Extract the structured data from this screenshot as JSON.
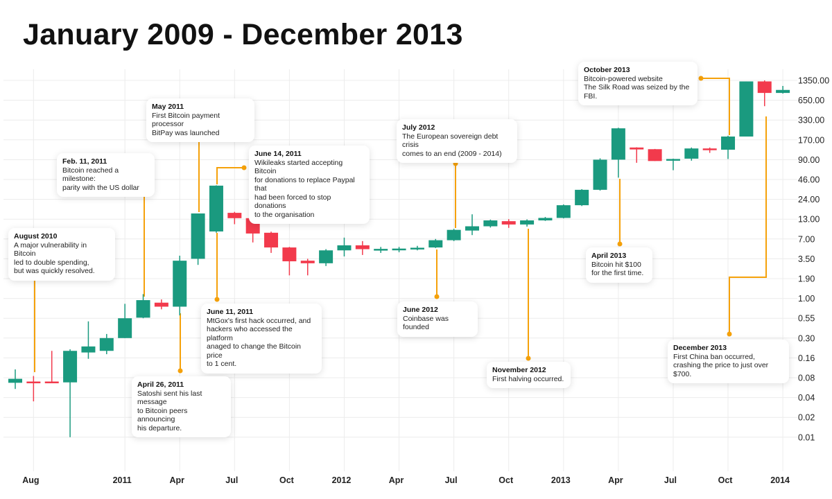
{
  "title": "January 2009 - December 2013",
  "colors": {
    "up": "#1a9a7f",
    "down": "#f23a4c",
    "annotation": "#f5a10a",
    "grid": "#ececec"
  },
  "chart_data": {
    "type": "candlestick",
    "title": "January 2009 - December 2013",
    "y_scale": "log",
    "y_ticks": [
      "1350.00",
      "650.00",
      "330.00",
      "170.00",
      "90.00",
      "46.00",
      "24.00",
      "13.00",
      "7.00",
      "3.50",
      "1.90",
      "1.00",
      "0.55",
      "0.30",
      "0.16",
      "0.08",
      "0.04",
      "0.02",
      "0.01"
    ],
    "x_ticks": [
      {
        "label": "Aug",
        "month": "2010-08"
      },
      {
        "label": "2011",
        "month": "2011-01"
      },
      {
        "label": "Apr",
        "month": "2011-04"
      },
      {
        "label": "Jul",
        "month": "2011-07"
      },
      {
        "label": "Oct",
        "month": "2011-10"
      },
      {
        "label": "2012",
        "month": "2012-01"
      },
      {
        "label": "Apr",
        "month": "2012-04"
      },
      {
        "label": "Jul",
        "month": "2012-07"
      },
      {
        "label": "Oct",
        "month": "2012-10"
      },
      {
        "label": "2013",
        "month": "2013-01"
      },
      {
        "label": "Apr",
        "month": "2013-04"
      },
      {
        "label": "Jul",
        "month": "2013-07"
      },
      {
        "label": "Oct",
        "month": "2013-10"
      },
      {
        "label": "2014",
        "month": "2014-01"
      }
    ],
    "grid": true,
    "candles": [
      {
        "month": "2010-07",
        "o": 0.067,
        "h": 0.107,
        "l": 0.054,
        "c": 0.077
      },
      {
        "month": "2010-08",
        "o": 0.07,
        "h": 0.085,
        "l": 0.035,
        "c": 0.068
      },
      {
        "month": "2010-09",
        "o": 0.07,
        "h": 0.2,
        "l": 0.066,
        "c": 0.068
      },
      {
        "month": "2010-10",
        "o": 0.068,
        "h": 0.21,
        "l": 0.01,
        "c": 0.2
      },
      {
        "month": "2010-11",
        "o": 0.19,
        "h": 0.5,
        "l": 0.155,
        "c": 0.23
      },
      {
        "month": "2010-12",
        "o": 0.2,
        "h": 0.34,
        "l": 0.18,
        "c": 0.3
      },
      {
        "month": "2011-01",
        "o": 0.3,
        "h": 0.85,
        "l": 0.3,
        "c": 0.55
      },
      {
        "month": "2011-02",
        "o": 0.56,
        "h": 1.15,
        "l": 0.55,
        "c": 0.95
      },
      {
        "month": "2011-03",
        "o": 0.88,
        "h": 0.97,
        "l": 0.72,
        "c": 0.78
      },
      {
        "month": "2011-04",
        "o": 0.78,
        "h": 3.9,
        "l": 0.6,
        "c": 3.3
      },
      {
        "month": "2011-05",
        "o": 3.5,
        "h": 15.5,
        "l": 2.9,
        "c": 15.5
      },
      {
        "month": "2011-06",
        "o": 8.85,
        "h": 38,
        "l": 8.5,
        "c": 37.6
      },
      {
        "month": "2011-07",
        "o": 15.8,
        "h": 16.3,
        "l": 11.1,
        "c": 13.4
      },
      {
        "month": "2011-08",
        "o": 13.4,
        "h": 13.5,
        "l": 6.2,
        "c": 8.3
      },
      {
        "month": "2011-09",
        "o": 8.5,
        "h": 8.8,
        "l": 4.3,
        "c": 5.2
      },
      {
        "month": "2011-10",
        "o": 5.2,
        "h": 5.3,
        "l": 2.1,
        "c": 3.24
      },
      {
        "month": "2011-11",
        "o": 3.3,
        "h": 3.5,
        "l": 2.1,
        "c": 3.05
      },
      {
        "month": "2011-12",
        "o": 3.05,
        "h": 4.9,
        "l": 2.8,
        "c": 4.7
      },
      {
        "month": "2012-01",
        "o": 4.7,
        "h": 7.3,
        "l": 3.8,
        "c": 5.6
      },
      {
        "month": "2012-02",
        "o": 5.6,
        "h": 6.5,
        "l": 4.0,
        "c": 4.9
      },
      {
        "month": "2012-03",
        "o": 4.9,
        "h": 5.3,
        "l": 4.3,
        "c": 4.95
      },
      {
        "month": "2012-04",
        "o": 4.95,
        "h": 5.3,
        "l": 4.4,
        "c": 5.0
      },
      {
        "month": "2012-05",
        "o": 4.9,
        "h": 5.5,
        "l": 4.7,
        "c": 5.15
      },
      {
        "month": "2012-06",
        "o": 5.2,
        "h": 7.0,
        "l": 5.1,
        "c": 6.7
      },
      {
        "month": "2012-07",
        "o": 6.7,
        "h": 9.6,
        "l": 6.5,
        "c": 9.3
      },
      {
        "month": "2012-08",
        "o": 9.1,
        "h": 15.1,
        "l": 7.9,
        "c": 10.4
      },
      {
        "month": "2012-09",
        "o": 10.4,
        "h": 12.8,
        "l": 10.0,
        "c": 12.5
      },
      {
        "month": "2012-10",
        "o": 12.2,
        "h": 13.0,
        "l": 9.9,
        "c": 11.0
      },
      {
        "month": "2012-11",
        "o": 11.0,
        "h": 12.9,
        "l": 10.3,
        "c": 12.5
      },
      {
        "month": "2012-12",
        "o": 12.5,
        "h": 13.9,
        "l": 12.3,
        "c": 13.5
      },
      {
        "month": "2013-01",
        "o": 13.5,
        "h": 20.5,
        "l": 13.3,
        "c": 20
      },
      {
        "month": "2013-02",
        "o": 20,
        "h": 33.5,
        "l": 19.5,
        "c": 32.8
      },
      {
        "month": "2013-03",
        "o": 32.8,
        "h": 94,
        "l": 32,
        "c": 90
      },
      {
        "month": "2013-04",
        "o": 90,
        "h": 255,
        "l": 49,
        "c": 250
      },
      {
        "month": "2013-05",
        "o": 133,
        "h": 134,
        "l": 81,
        "c": 125
      },
      {
        "month": "2013-06",
        "o": 126,
        "h": 127,
        "l": 86,
        "c": 86
      },
      {
        "month": "2013-07",
        "o": 87,
        "h": 93,
        "l": 63,
        "c": 92
      },
      {
        "month": "2013-08",
        "o": 93,
        "h": 133,
        "l": 87,
        "c": 129
      },
      {
        "month": "2013-09",
        "o": 129,
        "h": 133,
        "l": 112,
        "c": 124
      },
      {
        "month": "2013-10",
        "o": 124,
        "h": 195,
        "l": 92,
        "c": 190
      },
      {
        "month": "2013-11",
        "o": 190,
        "h": 1300,
        "l": 190,
        "c": 1300
      },
      {
        "month": "2013-12",
        "o": 1300,
        "h": 1350,
        "l": 530,
        "c": 850
      },
      {
        "month": "2014-01",
        "o": 850,
        "h": 1100,
        "l": 830,
        "c": 950
      }
    ],
    "annotations": [
      {
        "date": "August 2010",
        "text": "A major vulnerability in Bitcoin\nled to double spending,\nbut was quickly resolved."
      },
      {
        "date": "Feb. 11, 2011",
        "text": "Bitcoin reached a milestone:\nparity with the US dollar"
      },
      {
        "date": "May 2011",
        "text": "First Bitcoin payment processor\nBitPay was launched"
      },
      {
        "date": "June 14, 2011",
        "text": "Wikileaks started accepting Bitcoin\nfor donations to replace Paypal that\nhad been forced to stop donations\nto the organisation"
      },
      {
        "date": "June 11, 2011",
        "text": "MtGox's first hack occurred, and\nhackers who accessed the platform\nanaged to change the Bitcoin price\nto 1 cent."
      },
      {
        "date": "April 26, 2011",
        "text": "Satoshi sent his last message\nto Bitcoin peers announcing\nhis departure."
      },
      {
        "date": "July 2012",
        "text": "The European sovereign debt crisis\ncomes to an end (2009 - 2014)"
      },
      {
        "date": "June 2012",
        "text": "Coinbase was founded"
      },
      {
        "date": "November 2012",
        "text": "First halving occurred."
      },
      {
        "date": "October 2013",
        "text": "Bitcoin-powered website\nThe Silk Road was seized by the FBI."
      },
      {
        "date": "April 2013",
        "text": "Bitcoin hit $100\nfor the first time."
      },
      {
        "date": "December 2013",
        "text": "First China ban occurred,\ncrashing the price to just over $700."
      }
    ]
  }
}
